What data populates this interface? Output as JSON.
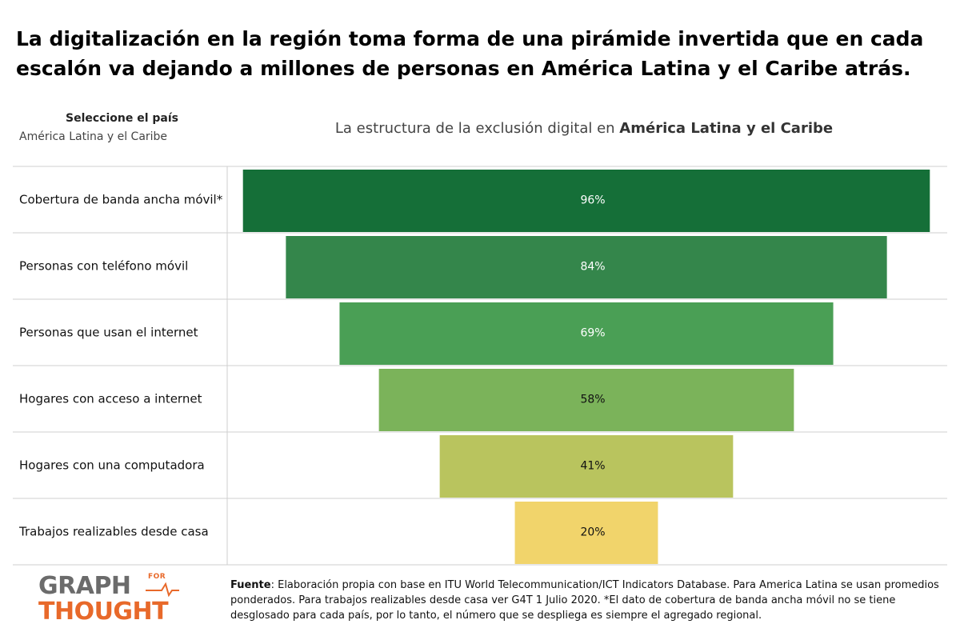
{
  "headline": "La digitalización en la región toma forma de una pirámide invertida que en cada escalón va dejando a millones de personas en América Latina y el Caribe atrás.",
  "selector": {
    "label": "Seleccione el país",
    "value": "América Latina y el Caribe"
  },
  "chart_title": {
    "prefix": "La estructura de la exclusión digital en ",
    "region": "América Latina y el Caribe"
  },
  "chart_data": {
    "type": "bar",
    "orientation": "horizontal-centered-funnel",
    "title": "La estructura de la exclusión digital en América Latina y el Caribe",
    "categories": [
      "Cobertura de banda ancha móvil*",
      "Personas con teléfono móvil",
      "Personas que usan el internet",
      "Hogares con acceso a internet",
      "Hogares con una computadora",
      "Trabajos realizables desde casa"
    ],
    "values": [
      96,
      84,
      69,
      58,
      41,
      20
    ],
    "value_labels": [
      "96%",
      "84%",
      "69%",
      "58%",
      "41%",
      "20%"
    ],
    "unit": "%",
    "xlim": [
      0,
      100
    ],
    "colors": [
      "#156f38",
      "#34864b",
      "#4a9f55",
      "#7bb35a",
      "#b9c45e",
      "#f1d46b"
    ],
    "label_colors": [
      "#ffffff",
      "#ffffff",
      "#ffffff",
      "#111111",
      "#111111",
      "#111111"
    ],
    "xlabel": "",
    "ylabel": ""
  },
  "logo": {
    "line1": "GRAPH",
    "for": "FOR",
    "line2": "THOUGHT",
    "color_gray": "#6b6b6b",
    "color_orange": "#e8692a"
  },
  "source": {
    "label": "Fuente",
    "text": ": Elaboración propia con base en ITU World Telecommunication/ICT Indicators Database. Para America Latina se usan promedios ponderados. Para trabajos realizables desde casa ver G4T 1 Julio 2020.  *El dato de cobertura de banda ancha móvil no se tiene desglosado para cada país, por lo tanto, el número que se despliega es siempre el agregado regional."
  }
}
